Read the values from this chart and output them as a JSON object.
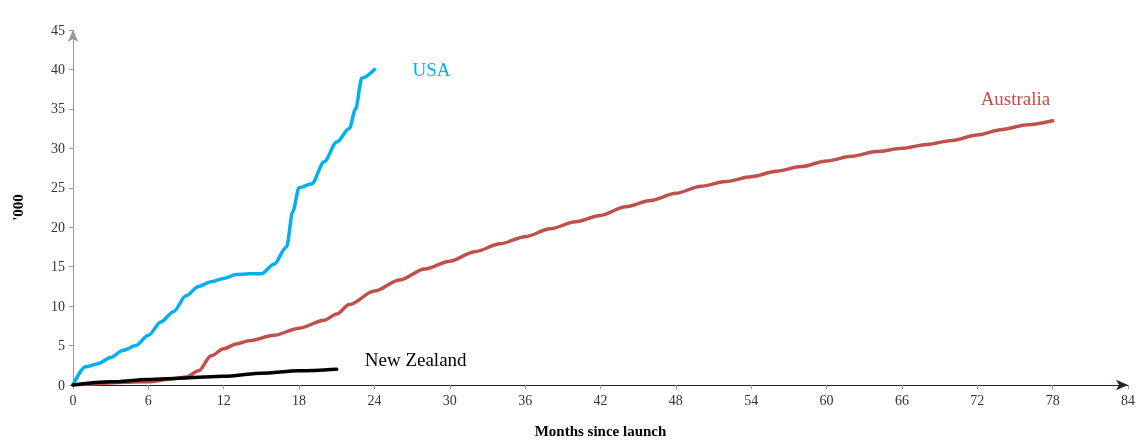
{
  "chart_data": {
    "type": "line",
    "xlabel": "Months since launch",
    "ylabel": "'000",
    "xlim": [
      0,
      84
    ],
    "xticks": [
      0,
      6,
      12,
      18,
      24,
      30,
      36,
      42,
      48,
      54,
      60,
      66,
      72,
      78,
      84
    ],
    "ylim": [
      0,
      45
    ],
    "yticks": [
      0,
      5,
      10,
      15,
      20,
      25,
      30,
      35,
      40,
      45
    ],
    "grid": false,
    "marker": "none",
    "line_style": "solid",
    "series": [
      {
        "name": "USA",
        "color": "#00b0f0",
        "x": [
          0,
          1,
          2,
          3,
          4,
          5,
          6,
          7,
          8,
          9,
          10,
          11,
          12,
          13,
          14,
          15,
          16,
          17,
          17.5,
          18,
          19,
          20,
          21,
          22,
          22.5,
          23,
          24
        ],
        "values": [
          0,
          2.3,
          2.7,
          3.5,
          4.4,
          5.0,
          6.3,
          8.0,
          9.3,
          11.3,
          12.5,
          13.1,
          13.5,
          14.0,
          14.1,
          14.1,
          15.3,
          17.5,
          22,
          25.0,
          25.5,
          28.3,
          30.8,
          32.5,
          35,
          38.9,
          40
        ]
      },
      {
        "name": "Australia",
        "color": "#c0504d",
        "x": [
          0,
          6,
          8,
          9,
          10,
          11,
          12,
          13,
          14,
          16,
          18,
          20,
          21,
          22,
          24,
          26,
          28,
          30,
          32,
          34,
          36,
          38,
          40,
          42,
          44,
          46,
          48,
          50,
          52,
          54,
          56,
          58,
          60,
          62,
          64,
          66,
          68,
          70,
          72,
          74,
          76,
          78
        ],
        "values": [
          0,
          0.4,
          0.8,
          1.0,
          1.8,
          3.7,
          4.6,
          5.2,
          5.6,
          6.3,
          7.2,
          8.2,
          9.0,
          10.2,
          11.9,
          13.3,
          14.7,
          15.7,
          16.9,
          17.9,
          18.8,
          19.8,
          20.7,
          21.5,
          22.6,
          23.4,
          24.3,
          25.2,
          25.8,
          26.4,
          27.1,
          27.7,
          28.4,
          29.0,
          29.6,
          30.0,
          30.5,
          31.0,
          31.7,
          32.4,
          33.0,
          33.5
        ]
      },
      {
        "name": "New Zealand",
        "color": "#000000",
        "x": [
          0,
          3,
          6,
          9,
          12,
          15,
          18,
          21
        ],
        "values": [
          0,
          0.4,
          0.7,
          0.9,
          1.1,
          1.5,
          1.8,
          2.0
        ]
      }
    ]
  }
}
